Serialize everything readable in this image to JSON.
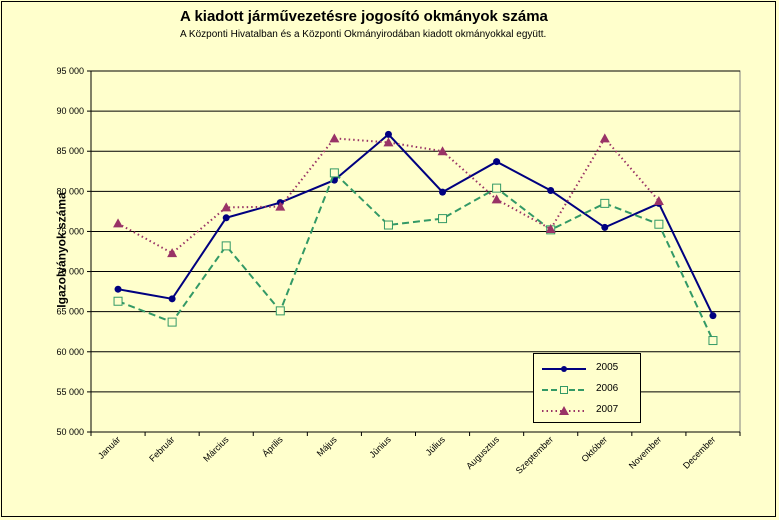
{
  "chart_data": {
    "type": "line",
    "title": "A  kiadott járművezetésre  jogosító okmányok száma",
    "subtitle": "A  Központi Hivatalban és a Központi Okmányirodában kiadott okmányokkal együtt.",
    "ylabel": "Igazolványok száma",
    "xlabel": "",
    "categories": [
      "Január",
      "Február",
      "Március",
      "Április",
      "Május",
      "Június",
      "Július",
      "Augusztus",
      "Szeptember",
      "Október",
      "November",
      "December"
    ],
    "ylim": [
      50000,
      95000
    ],
    "yticks": [
      50000,
      55000,
      60000,
      65000,
      70000,
      75000,
      80000,
      85000,
      90000,
      95000
    ],
    "ytick_labels": [
      "50 000",
      "55 000",
      "60 000",
      "65 000",
      "70 000",
      "75 000",
      "80 000",
      "85 000",
      "90 000",
      "95 000"
    ],
    "grid": true,
    "legend_position": "bottom-right",
    "series": [
      {
        "name": "2005",
        "color": "#000080",
        "style": "solid",
        "marker": "circle",
        "values": [
          67800,
          66600,
          76700,
          78600,
          81400,
          87100,
          79900,
          83700,
          80100,
          75500,
          78500,
          64500
        ]
      },
      {
        "name": "2006",
        "color": "#339966",
        "style": "dashed",
        "marker": "square",
        "values": [
          66300,
          63700,
          73200,
          65100,
          82300,
          75800,
          76600,
          80400,
          75200,
          78500,
          75900,
          61400
        ]
      },
      {
        "name": "2007",
        "color": "#993366",
        "style": "dotted",
        "marker": "triangle",
        "values": [
          76000,
          72300,
          78000,
          78100,
          86600,
          86100,
          85000,
          79000,
          75300,
          86600,
          78800,
          null
        ]
      }
    ]
  }
}
